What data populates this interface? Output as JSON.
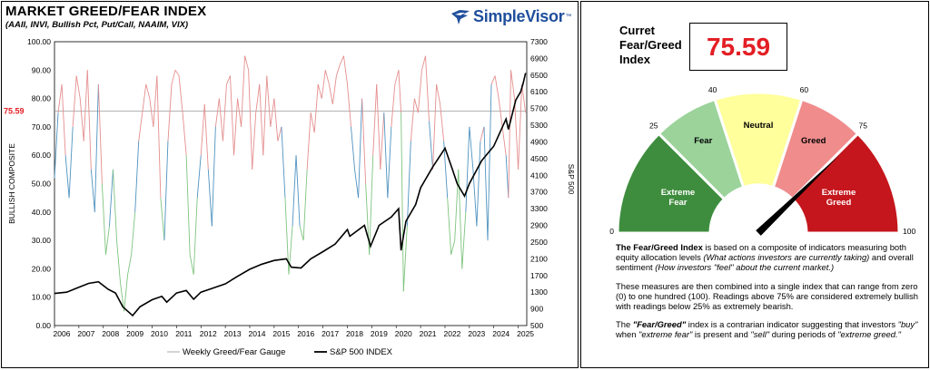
{
  "chart_data": [
    {
      "type": "line",
      "title": "MARKET GREED/FEAR INDEX",
      "subtitle": "(AAII, INVI, Bullish Pct, Put/Call, NAAIM, VIX)",
      "ylabel": "BULLISH COMPOSITE",
      "y2label": "S&P 500",
      "ylim": [
        0,
        100
      ],
      "y2lim": [
        500,
        7300
      ],
      "yticks": [
        "0.00",
        "10.00",
        "20.00",
        "30.00",
        "40.00",
        "50.00",
        "60.00",
        "70.00",
        "80.00",
        "90.00",
        "100.00"
      ],
      "y2ticks": [
        "500",
        "900",
        "1300",
        "1700",
        "2100",
        "2500",
        "2900",
        "3300",
        "3700",
        "4100",
        "4500",
        "4900",
        "5300",
        "5700",
        "6100",
        "6500",
        "6900",
        "7300"
      ],
      "xticks": [
        "2006",
        "2007",
        "2008",
        "2009",
        "2010",
        "2011",
        "2012",
        "2013",
        "2014",
        "2015",
        "2016",
        "2017",
        "2018",
        "2019",
        "2020",
        "2021",
        "2022",
        "2023",
        "2024",
        "2025"
      ],
      "current_marker": "75.59",
      "current_value": 75.59,
      "legend_position": "bottom",
      "series": [
        {
          "name": "Weekly Greed/Fear Gauge",
          "axis": "left",
          "x": [
            2006.0,
            2006.15,
            2006.3,
            2006.45,
            2006.6,
            2006.75,
            2006.9,
            2007.05,
            2007.2,
            2007.35,
            2007.5,
            2007.65,
            2007.8,
            2007.95,
            2008.1,
            2008.25,
            2008.4,
            2008.55,
            2008.7,
            2008.85,
            2009.0,
            2009.15,
            2009.3,
            2009.45,
            2009.6,
            2009.75,
            2009.9,
            2010.05,
            2010.2,
            2010.35,
            2010.5,
            2010.65,
            2010.8,
            2010.95,
            2011.1,
            2011.25,
            2011.4,
            2011.55,
            2011.7,
            2011.85,
            2012.0,
            2012.15,
            2012.3,
            2012.45,
            2012.6,
            2012.75,
            2012.9,
            2013.05,
            2013.2,
            2013.35,
            2013.5,
            2013.65,
            2013.8,
            2013.95,
            2014.1,
            2014.25,
            2014.4,
            2014.55,
            2014.7,
            2014.85,
            2015.0,
            2015.15,
            2015.3,
            2015.45,
            2015.6,
            2015.75,
            2015.9,
            2016.05,
            2016.2,
            2016.35,
            2016.5,
            2016.65,
            2016.8,
            2016.95,
            2017.1,
            2017.25,
            2017.4,
            2017.55,
            2017.7,
            2017.85,
            2018.0,
            2018.15,
            2018.3,
            2018.45,
            2018.6,
            2018.75,
            2018.9,
            2019.05,
            2019.2,
            2019.35,
            2019.5,
            2019.65,
            2019.8,
            2019.95,
            2020.1,
            2020.2,
            2020.3,
            2020.45,
            2020.6,
            2020.75,
            2020.9,
            2021.05,
            2021.2,
            2021.35,
            2021.5,
            2021.65,
            2021.8,
            2021.95,
            2022.1,
            2022.25,
            2022.4,
            2022.55,
            2022.7,
            2022.85,
            2023.0,
            2023.15,
            2023.3,
            2023.45,
            2023.6,
            2023.75,
            2023.9,
            2024.05,
            2024.2,
            2024.35,
            2024.5,
            2024.6,
            2024.7,
            2024.85,
            2025.0,
            2025.15,
            2025.3
          ],
          "values": [
            52,
            75,
            85,
            60,
            45,
            70,
            88,
            80,
            65,
            90,
            55,
            40,
            85,
            50,
            25,
            35,
            55,
            30,
            15,
            5,
            18,
            25,
            40,
            65,
            75,
            85,
            80,
            70,
            88,
            45,
            30,
            65,
            85,
            90,
            88,
            75,
            60,
            25,
            18,
            45,
            60,
            78,
            55,
            35,
            70,
            80,
            65,
            85,
            88,
            60,
            80,
            70,
            95,
            90,
            55,
            75,
            85,
            60,
            88,
            70,
            80,
            65,
            70,
            45,
            18,
            35,
            60,
            35,
            30,
            55,
            75,
            68,
            85,
            80,
            90,
            85,
            78,
            88,
            92,
            95,
            85,
            70,
            55,
            45,
            80,
            50,
            25,
            60,
            85,
            55,
            75,
            45,
            70,
            85,
            90,
            75,
            12,
            35,
            65,
            80,
            75,
            90,
            95,
            72,
            55,
            85,
            78,
            65,
            45,
            25,
            30,
            55,
            20,
            40,
            70,
            55,
            35,
            65,
            70,
            30,
            85,
            88,
            80,
            70,
            60,
            45,
            90,
            80,
            55,
            85,
            75
          ]
        },
        {
          "name": "S&P 500 INDEX",
          "axis": "right",
          "x": [
            2006.0,
            2006.5,
            2007.0,
            2007.4,
            2007.8,
            2008.2,
            2008.5,
            2008.8,
            2009.2,
            2009.5,
            2010.0,
            2010.4,
            2010.6,
            2011.0,
            2011.4,
            2011.7,
            2012.0,
            2012.5,
            2013.0,
            2013.5,
            2014.0,
            2014.5,
            2015.0,
            2015.5,
            2015.7,
            2016.1,
            2016.5,
            2017.0,
            2017.5,
            2018.0,
            2018.1,
            2018.7,
            2018.95,
            2019.3,
            2019.8,
            2020.1,
            2020.2,
            2020.4,
            2020.8,
            2021.0,
            2021.5,
            2022.0,
            2022.3,
            2022.5,
            2022.8,
            2023.0,
            2023.5,
            2024.0,
            2024.5,
            2024.6,
            2024.9,
            2025.1,
            2025.2,
            2025.3
          ],
          "values": [
            1270,
            1300,
            1420,
            1510,
            1550,
            1370,
            1280,
            950,
            740,
            950,
            1120,
            1200,
            1060,
            1280,
            1340,
            1130,
            1300,
            1400,
            1500,
            1680,
            1850,
            1970,
            2060,
            2100,
            1900,
            1880,
            2100,
            2270,
            2450,
            2800,
            2640,
            2900,
            2400,
            2900,
            3100,
            3300,
            2300,
            3000,
            3400,
            3800,
            4300,
            4750,
            4250,
            3900,
            3600,
            3900,
            4450,
            4800,
            5450,
            5200,
            5900,
            6100,
            6300,
            6550
          ]
        }
      ]
    },
    {
      "type": "gauge",
      "min": 0,
      "max": 100,
      "value": 75.59,
      "tick_labels": [
        "0",
        "25",
        "40",
        "60",
        "75",
        "100"
      ],
      "segments": [
        {
          "label": "Extreme Fear",
          "from": 0,
          "to": 25,
          "color": "#3e8d3e"
        },
        {
          "label": "Fear",
          "from": 25,
          "to": 40,
          "color": "#9bd39b"
        },
        {
          "label": "Neutral",
          "from": 40,
          "to": 60,
          "color": "#ffff9c"
        },
        {
          "label": "Greed",
          "from": 60,
          "to": 75,
          "color": "#f08c8c"
        },
        {
          "label": "Extreme Greed",
          "from": 75,
          "to": 100,
          "color": "#c4161c"
        }
      ]
    }
  ],
  "brand": {
    "name": "SimpleVisor",
    "tm": "™",
    "icon": "eagle-icon",
    "color": "#1f4e9c"
  },
  "colors": {
    "greed": "#e58e8e",
    "neutral": "#4f93c0",
    "fear": "#7ec47e",
    "sp500": "#000000",
    "marker": "#e31e24"
  },
  "current": {
    "label": "Curret Fear/Greed Index",
    "value": "75.59"
  },
  "description": [
    {
      "parts": [
        {
          "t": "The Fear/Greed Index",
          "s": "b"
        },
        {
          "t": " is based on a composite of indicators measuring both equity allocation levels "
        },
        {
          "t": "(What actions investors are currently taking)",
          "s": "i"
        },
        {
          "t": " and overall sentiment "
        },
        {
          "t": "(How investors \"feel\" about the current market.)",
          "s": "i"
        }
      ]
    },
    {
      "parts": [
        {
          "t": "These measures are then combined into a single index that can range from zero (0) to one hundred (100). Readings above 75% are considered extremely bullish with readings below 25% as extremely bearish."
        }
      ]
    },
    {
      "parts": [
        {
          "t": "The "
        },
        {
          "t": "\"Fear/Greed\"",
          "s": "bi"
        },
        {
          "t": " index is a contrarian indicator suggesting that investors "
        },
        {
          "t": "\"buy\"",
          "s": "i"
        },
        {
          "t": " when "
        },
        {
          "t": "\"extreme fear\"",
          "s": "i"
        },
        {
          "t": " is present and "
        },
        {
          "t": "\"sell\"",
          "s": "i"
        },
        {
          "t": " during periods of "
        },
        {
          "t": "\"extreme greed.\"",
          "s": "i"
        }
      ]
    }
  ]
}
